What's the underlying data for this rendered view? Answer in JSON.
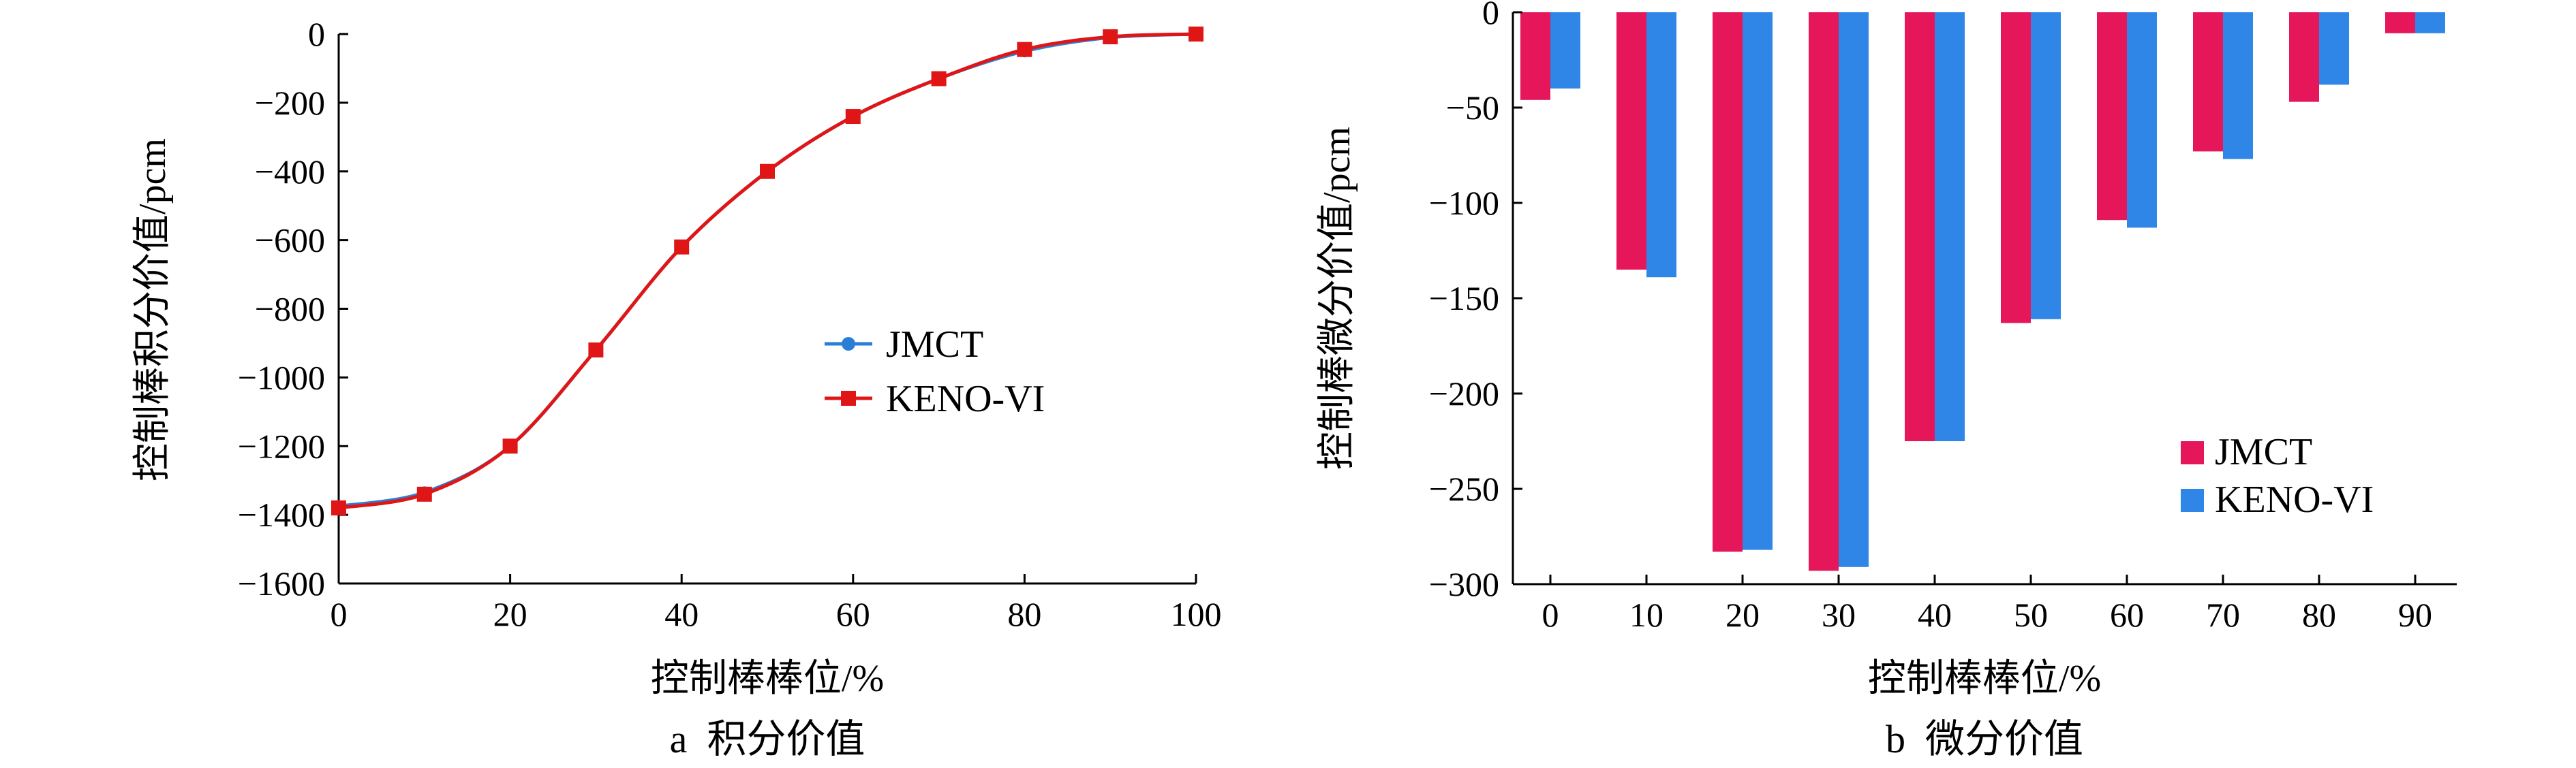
{
  "colors": {
    "jmct_line": "#2a7fd4",
    "keno_line": "#e01616",
    "jmct_bar": "#e5175a",
    "keno_bar": "#2f86e6",
    "axis": "#000000"
  },
  "chart_data": [
    {
      "type": "line",
      "caption": "a  积分价值",
      "xlabel": "控制棒棒位/%",
      "ylabel": "控制棒积分价值/pcm",
      "xlim": [
        0,
        100
      ],
      "ylim": [
        -1600,
        0
      ],
      "xticks": [
        0,
        20,
        40,
        60,
        80,
        100
      ],
      "yticks": [
        0,
        -200,
        -400,
        -600,
        -800,
        -1000,
        -1200,
        -1400,
        -1600
      ],
      "ytick_labels": [
        "0",
        "−200",
        "−400",
        "−600",
        "−800",
        "−1000",
        "−1200",
        "−1400",
        "−1600"
      ],
      "legend_position": "center-right",
      "grid": false,
      "x": [
        0,
        10,
        20,
        30,
        40,
        50,
        60,
        70,
        80,
        90,
        100
      ],
      "series": [
        {
          "name": "JMCT",
          "marker": "circle",
          "values": [
            -1375,
            -1335,
            -1200,
            -920,
            -620,
            -400,
            -240,
            -130,
            -50,
            -10,
            0
          ]
        },
        {
          "name": "KENO-VI",
          "marker": "square",
          "values": [
            -1380,
            -1340,
            -1200,
            -920,
            -620,
            -400,
            -240,
            -130,
            -45,
            -8,
            0
          ]
        }
      ]
    },
    {
      "type": "bar",
      "caption": "b  微分价值",
      "xlabel": "控制棒棒位/%",
      "ylabel": "控制棒微分价值/pcm",
      "categories": [
        "0",
        "10",
        "20",
        "30",
        "40",
        "50",
        "60",
        "70",
        "80",
        "90"
      ],
      "ylim": [
        -300,
        0
      ],
      "yticks": [
        0,
        -50,
        -100,
        -150,
        -200,
        -250,
        -300
      ],
      "ytick_labels": [
        "0",
        "−50",
        "−100",
        "−150",
        "−200",
        "−250",
        "−300"
      ],
      "legend_position": "bottom-right",
      "grid": false,
      "series": [
        {
          "name": "JMCT",
          "values": [
            -46,
            -135,
            -283,
            -293,
            -225,
            -163,
            -109,
            -73,
            -47,
            -11
          ]
        },
        {
          "name": "KENO-VI",
          "values": [
            -40,
            -139,
            -282,
            -291,
            -225,
            -161,
            -113,
            -77,
            -38,
            -11
          ]
        }
      ]
    }
  ]
}
